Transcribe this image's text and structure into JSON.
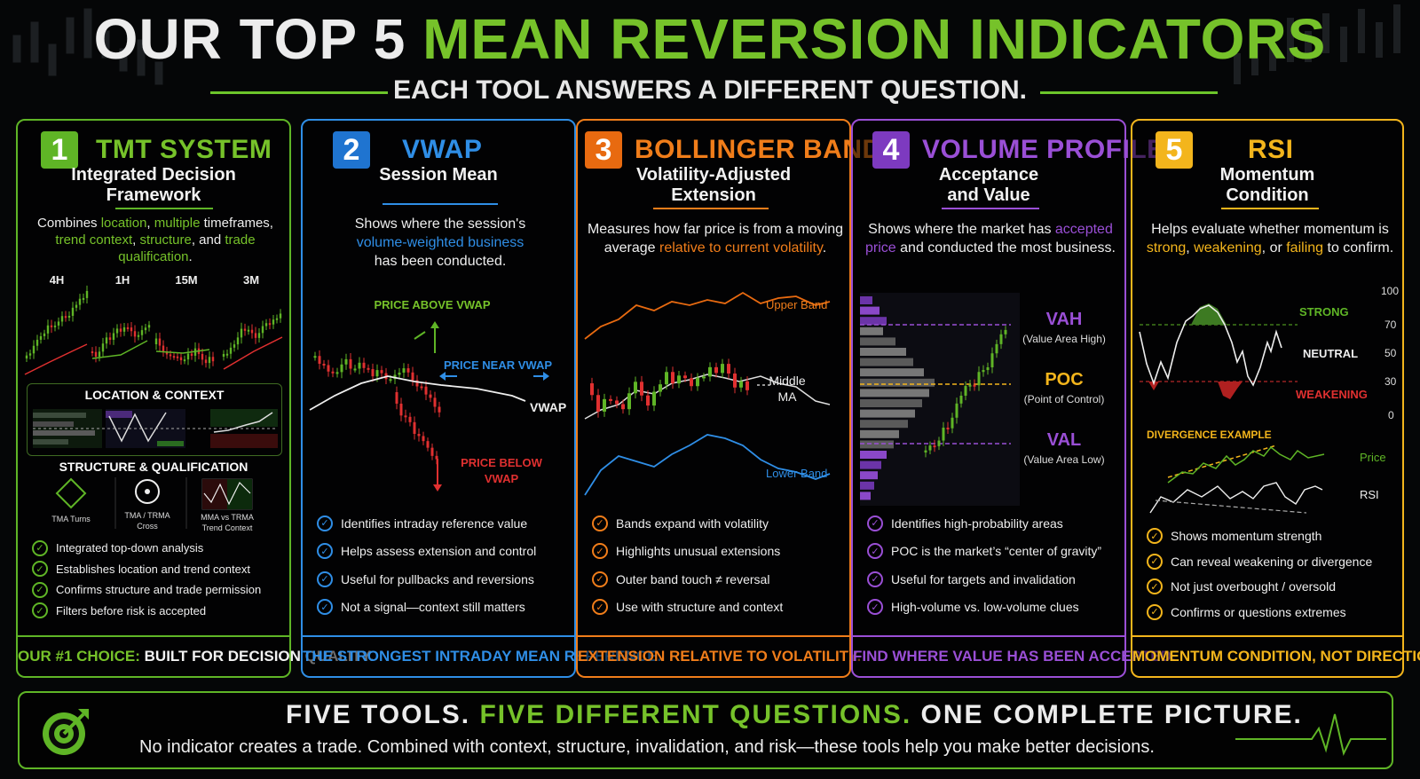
{
  "title": {
    "part1": "OUR TOP 5",
    "part2": "MEAN REVERSION INDICATORS"
  },
  "subtitle": "EACH TOOL ANSWERS A DIFFERENT QUESTION.",
  "colors": {
    "green": "#76c22a",
    "blue": "#2f8ee6",
    "orange": "#f07d1a",
    "purple": "#9a4fd6",
    "gold": "#f3b51c"
  },
  "cards": [
    {
      "number": "1",
      "name": "TMT SYSTEM",
      "subtitle_line1": "Integrated Decision",
      "subtitle_line2": "Framework",
      "desc": {
        "p1": "Combines ",
        "h1": "location",
        "p2": ", ",
        "h2": "multiple",
        "p3": " timeframes, ",
        "h3": "trend context",
        "p4": ", ",
        "h4": "structure",
        "p5": ", and ",
        "h5": "trade qualification",
        "p6": "."
      },
      "timeframes": [
        "4H",
        "1H",
        "15M",
        "3M"
      ],
      "panel1_title": "LOCATION & CONTEXT",
      "panel2_title": "STRUCTURE & QUALIFICATION",
      "sq_items": [
        "TMA Turns",
        "TMA / TRMA Cross",
        "MMA vs TRMA Trend Context"
      ],
      "sq_lines": {
        "a2": "Cross",
        "c2": "Trend Context",
        "b1": "TMA / TRMA",
        "c1": "MMA vs TRMA"
      },
      "bullets": [
        "Integrated top-down analysis",
        "Establishes location and trend context",
        "Confirms structure and trade permission",
        "Filters before risk is accepted"
      ],
      "footer": {
        "accent": "OUR #1 CHOICE:",
        "rest": " BUILT FOR DECISION QUALITY."
      }
    },
    {
      "number": "2",
      "name": "VWAP",
      "subtitle_line1": "Session Mean",
      "desc": {
        "p1": "Shows where the session's",
        "h1": "volume-weighted business",
        "p2": "has been conducted."
      },
      "labels": {
        "above": "PRICE ABOVE VWAP",
        "near": "PRICE NEAR VWAP",
        "vwap": "VWAP",
        "below1": "PRICE BELOW",
        "below2": "VWAP"
      },
      "bullets": [
        "Identifies intraday reference value",
        "Helps assess extension and control",
        "Useful for pullbacks and reversions",
        "Not a signal—context still matters"
      ],
      "footer": "THE STRONGEST INTRADAY MEAN REFERENCE."
    },
    {
      "number": "3",
      "name": "BOLLINGER BANDS",
      "subtitle_line1": "Volatility-Adjusted",
      "subtitle_line2": "Extension",
      "desc": {
        "p1": "Measures how far price is from a moving average ",
        "h1": "relative to current volatility",
        "p2": "."
      },
      "labels": {
        "upper": "Upper Band",
        "middle1": "Middle",
        "middle2": "MA",
        "lower": "Lower Band"
      },
      "bullets": [
        "Bands expand with volatility",
        "Highlights unusual extensions",
        "Outer band touch ≠ reversal",
        "Use with structure and context"
      ],
      "footer": "EXTENSION RELATIVE TO VOLATILITY."
    },
    {
      "number": "4",
      "name": "VOLUME PROFILE",
      "subtitle_line1": "Acceptance",
      "subtitle_line2": "and Value",
      "desc": {
        "p1": "Shows where the market has ",
        "h1": "accepted price",
        "p2": " and conducted the most business."
      },
      "labels": {
        "vah": "VAH",
        "vah_sub": "(Value Area High)",
        "poc": "POC",
        "poc_sub": "(Point of Control)",
        "val": "VAL",
        "val_sub": "(Value Area Low)"
      },
      "bullets": [
        "Identifies high-probability areas",
        "POC is the market’s “center of gravity”",
        "Useful for targets and invalidation",
        "High-volume vs. low-volume clues"
      ],
      "footer": "FIND WHERE VALUE HAS BEEN ACCEPTED."
    },
    {
      "number": "5",
      "name": "RSI",
      "subtitle_line1": "Momentum",
      "subtitle_line2": "Condition",
      "desc": {
        "p1": "Helps evaluate whether momentum is ",
        "h1": "strong",
        "p2": ", ",
        "h2": "weakening",
        "p3": ", or ",
        "h3": "failing",
        "p4": " to confirm."
      },
      "axis": [
        "100",
        "70",
        "50",
        "30",
        "0"
      ],
      "labels": {
        "strong": "STRONG",
        "neutral": "NEUTRAL",
        "weakening": "WEAKENING",
        "div": "DIVERGENCE EXAMPLE",
        "price": "Price",
        "rsi": "RSI"
      },
      "bullets": [
        "Shows momentum strength",
        "Can reveal weakening or divergence",
        "Not just overbought / oversold",
        "Confirms or questions extremes"
      ],
      "footer": "MOMENTUM CONDITION, NOT DIRECTION."
    }
  ],
  "bottom": {
    "l1a": "FIVE TOOLS.",
    "l1b": "FIVE DIFFERENT QUESTIONS.",
    "l1c": "ONE COMPLETE PICTURE.",
    "l2": "No indicator creates a trade. Combined with context, structure, invalidation, and risk—these tools help you make better decisions."
  }
}
